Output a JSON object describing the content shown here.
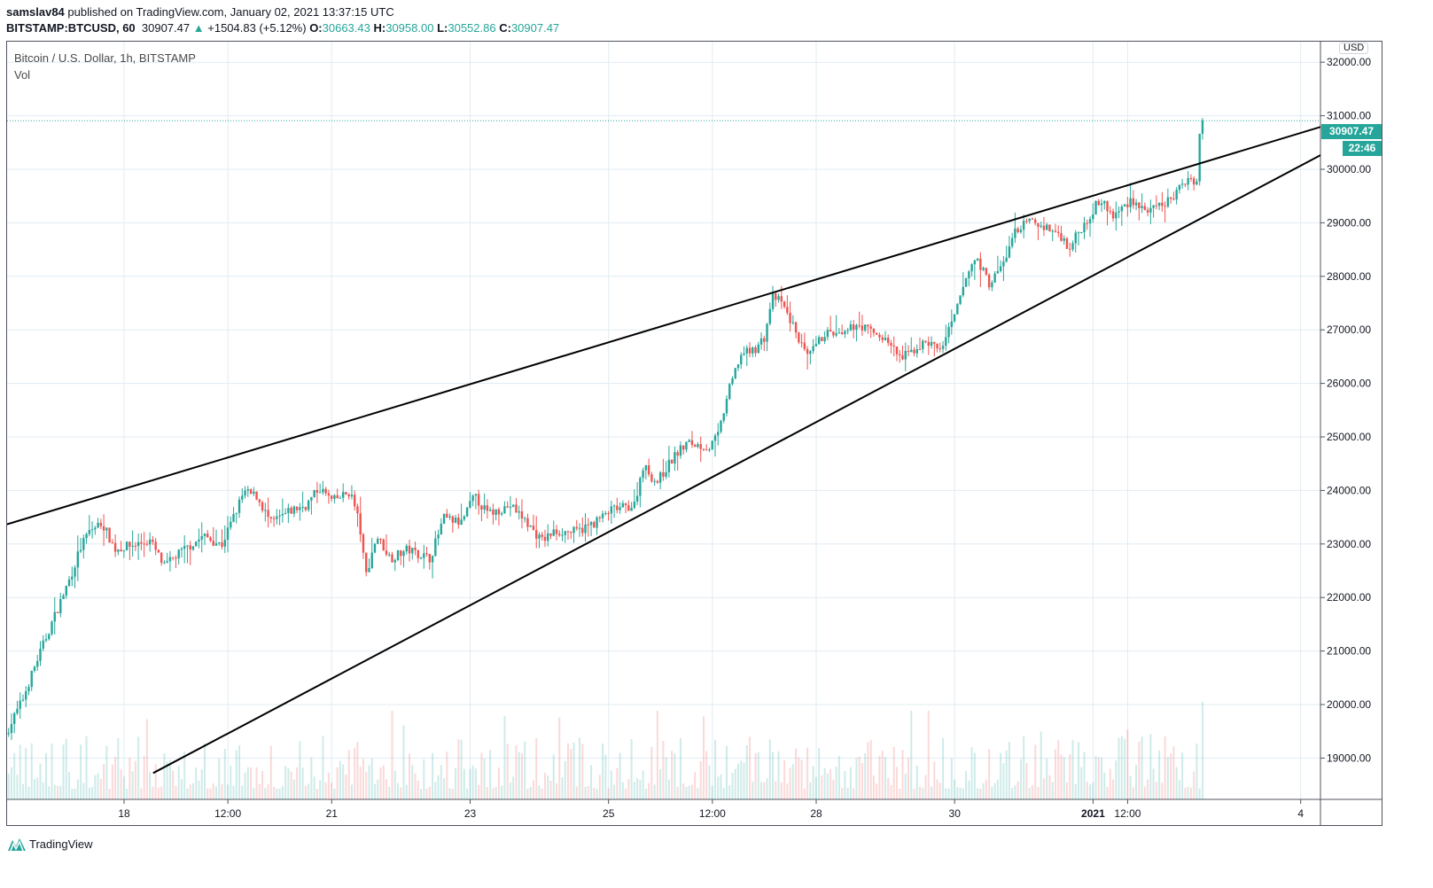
{
  "header": {
    "author": "samslav84",
    "published_text": " published on TradingView.com, January 02, 2021 13:37:15 UTC",
    "symbol": "BITSTAMP:BTCUSD, 60",
    "last": "30907.47",
    "change": "+1504.83 (+5.12%)",
    "o_label": "O:",
    "o": "30663.43",
    "h_label": "H:",
    "h": "30958.00",
    "l_label": "L:",
    "l": "30552.86",
    "c_label": "C:",
    "c": "30907.47"
  },
  "legend": {
    "title": "Bitcoin / U.S. Dollar, 1h, BITSTAMP",
    "vol": "Vol"
  },
  "price_scale": {
    "currency": "USD",
    "last_price": "30907.47",
    "countdown": "22:46"
  },
  "brand": "TradingView",
  "colors": {
    "up": "#26a69a",
    "down": "#ef5350",
    "grid": "#e1ecf2",
    "line": "#000000"
  },
  "chart_data": {
    "type": "candlestick",
    "title": "Bitcoin / U.S. Dollar, 1h, BITSTAMP",
    "ylim": [
      18300,
      32400
    ],
    "yticks": [
      "19000.00",
      "20000.00",
      "21000.00",
      "22000.00",
      "23000.00",
      "24000.00",
      "25000.00",
      "26000.00",
      "27000.00",
      "28000.00",
      "29000.00",
      "30000.00",
      "31000.00",
      "32000.00"
    ],
    "xticks": [
      {
        "label": "18",
        "t": 0
      },
      {
        "label": "12:00",
        "t": 1.5
      },
      {
        "label": "21",
        "t": 3
      },
      {
        "label": "23",
        "t": 5
      },
      {
        "label": "25",
        "t": 7
      },
      {
        "label": "12:00",
        "t": 8.5
      },
      {
        "label": "28",
        "t": 10
      },
      {
        "label": "30",
        "t": 12
      },
      {
        "label": "2021",
        "t": 14
      },
      {
        "label": "12:00",
        "t": 14.5
      },
      {
        "label": "4",
        "t": 17
      }
    ],
    "x_units": "days since Dec 18 2020 00:00 UTC",
    "path_t": [
      -1.71,
      -1.47,
      -1.28,
      -1.03,
      -0.77,
      -0.64,
      -0.51,
      -0.32,
      -0.13,
      0.13,
      0.38,
      0.58,
      0.77,
      1.15,
      1.41,
      1.6,
      1.73,
      1.92,
      2.12,
      2.44,
      2.63,
      2.82,
      3.01,
      3.27,
      3.4,
      3.49,
      3.65,
      3.85,
      4.1,
      4.42,
      4.62,
      4.87,
      5.06,
      5.26,
      5.58,
      5.77,
      6.03,
      6.22,
      6.54,
      6.79,
      7.05,
      7.37,
      7.5,
      7.69,
      7.95,
      8.14,
      8.46,
      8.59,
      8.72,
      8.91,
      9.1,
      9.26,
      9.36,
      9.49,
      9.68,
      9.87,
      10.13,
      10.38,
      10.58,
      10.83,
      11.03,
      11.22,
      11.41,
      11.6,
      11.79,
      11.99,
      12.18,
      12.31,
      12.5,
      12.69,
      12.88,
      13.08,
      13.27,
      13.53,
      13.65,
      13.85,
      14.1,
      14.29,
      14.55,
      14.81,
      15.13,
      15.38,
      15.5,
      15.54
    ],
    "path_p": [
      19450,
      20080,
      20750,
      21570,
      22400,
      22900,
      23230,
      23400,
      22900,
      22980,
      23060,
      22570,
      22800,
      23150,
      22980,
      23560,
      23970,
      23890,
      23390,
      23640,
      23720,
      24050,
      23800,
      23970,
      23390,
      22400,
      23150,
      22730,
      22900,
      22730,
      23480,
      23390,
      23890,
      23560,
      23720,
      23480,
      23060,
      23230,
      23230,
      23390,
      23640,
      23720,
      24470,
      24140,
      24640,
      24890,
      24800,
      25050,
      25790,
      26540,
      26620,
      26870,
      27620,
      27530,
      27040,
      26460,
      26950,
      26870,
      27120,
      26950,
      26790,
      26460,
      26620,
      26790,
      26620,
      27200,
      28030,
      28360,
      27860,
      28200,
      28860,
      29020,
      28940,
      28770,
      28530,
      28940,
      29440,
      29110,
      29440,
      29190,
      29440,
      29850,
      29770,
      30010
    ],
    "last_candle": {
      "o": 30663.43,
      "h": 30958.0,
      "l": 30552.86,
      "c": 30907.47
    },
    "trendlines": [
      {
        "name": "upper-trendline",
        "t1": -1.71,
        "p1": 23360,
        "t2": 17.31,
        "p2": 30800
      },
      {
        "name": "lower-trendline",
        "t1": 0.42,
        "p1": 18720,
        "t2": 17.31,
        "p2": 30280
      }
    ]
  }
}
